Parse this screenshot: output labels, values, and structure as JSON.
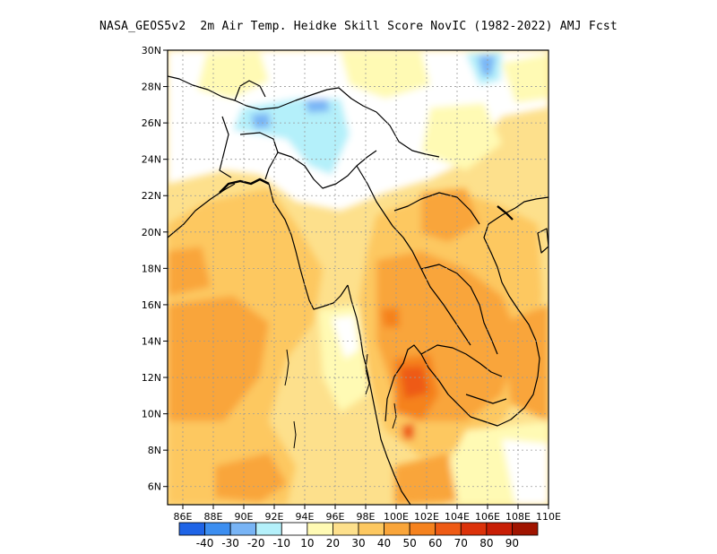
{
  "title": "NASA_GEOS5v2  2m Air Temp. Heidke Skill Score NovIC (1982-2022) AMJ Fcst",
  "map": {
    "lon_range": [
      85,
      110
    ],
    "lat_range": [
      5,
      30
    ],
    "x_tick_values": [
      86,
      88,
      90,
      92,
      94,
      96,
      98,
      100,
      102,
      104,
      106,
      108,
      110
    ],
    "x_tick_labels": [
      "86E",
      "88E",
      "90E",
      "92E",
      "94E",
      "96E",
      "98E",
      "100E",
      "102E",
      "104E",
      "106E",
      "108E",
      "110E"
    ],
    "y_tick_values": [
      6,
      8,
      10,
      12,
      14,
      16,
      18,
      20,
      22,
      24,
      26,
      28,
      30
    ],
    "y_tick_labels": [
      "6N",
      "8N",
      "10N",
      "12N",
      "14N",
      "16N",
      "18N",
      "20N",
      "22N",
      "24N",
      "26N",
      "28N",
      "30N"
    ],
    "gridlines": "dotted"
  },
  "colorbar": {
    "colors": [
      "#1f64e6",
      "#3c8ef0",
      "#78b4f5",
      "#b4f0fa",
      "#ffffff",
      "#fffab4",
      "#fde08c",
      "#fdc860",
      "#f9a53a",
      "#f5821e",
      "#ee5a14",
      "#dc320a",
      "#c81e05",
      "#a01400"
    ],
    "labels": [
      "-40",
      "-30",
      "-20",
      "-10",
      "10",
      "20",
      "30",
      "40",
      "50",
      "60",
      "70",
      "80",
      "90"
    ]
  }
}
